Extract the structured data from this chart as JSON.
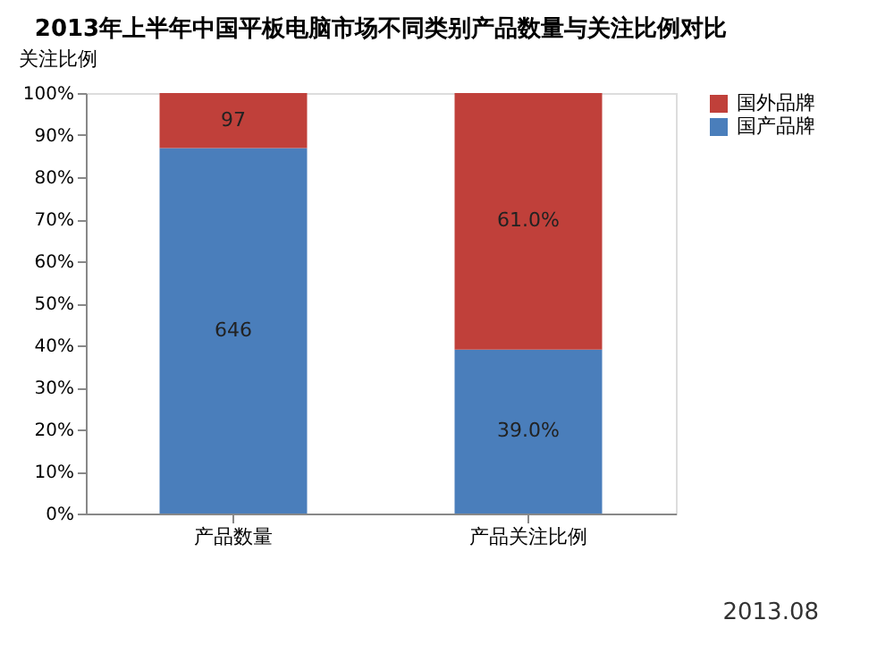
{
  "chart_data": {
    "type": "bar",
    "title": "2013年上半年中国平板电脑市场不同类别产品数量与关注比例对比",
    "ylabel": "关注比例",
    "categories": [
      "产品数量",
      "产品关注比例"
    ],
    "series": [
      {
        "name": "国产品牌",
        "color": "#4a7ebb",
        "values": [
          86.9,
          39.0
        ],
        "value_labels": [
          null,
          "39.0%"
        ]
      },
      {
        "name": "国外品牌",
        "color": "#c0403a",
        "values": [
          13.1,
          61.0
        ],
        "value_labels": [
          null,
          "61.0%"
        ]
      }
    ],
    "stacked": true,
    "ylim": [
      0,
      100
    ],
    "yticks": [
      {
        "value": 0,
        "label": "0%"
      },
      {
        "value": 10,
        "label": "10%"
      },
      {
        "value": 20,
        "label": "20%"
      },
      {
        "value": 30,
        "label": "30%"
      },
      {
        "value": 40,
        "label": "40%"
      },
      {
        "value": 50,
        "label": "50%"
      },
      {
        "value": 60,
        "label": "60%"
      },
      {
        "value": 70,
        "label": "70%"
      },
      {
        "value": 80,
        "label": "80%"
      },
      {
        "value": 90,
        "label": "90%"
      },
      {
        "value": 100,
        "label": "100%"
      }
    ],
    "grid": false,
    "legend": "right",
    "annotations": [
      "646",
      "97",
      "2013.08"
    ]
  }
}
